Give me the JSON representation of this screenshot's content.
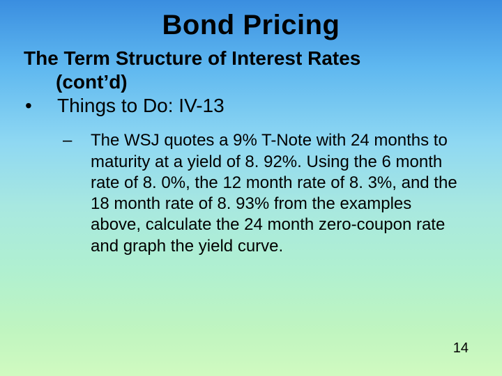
{
  "title": "Bond Pricing",
  "subtitle_line1": "The Term Structure of Interest Rates",
  "subtitle_line2": "(cont’d)",
  "bullet_symbol": "•",
  "level1_text": "Things to Do: IV-13",
  "dash_symbol": "–",
  "level2_text": "The WSJ quotes a 9% T-Note with 24 months to maturity at a yield of 8. 92%. Using the 6 month rate of 8. 0%, the 12 month rate of 8. 3%, and the 18 month rate of 8. 93% from the examples above, calculate the 24 month zero-coupon rate and graph the yield curve.",
  "page_number": "14",
  "colors": {
    "gradient_top": "#3a8ee0",
    "gradient_bottom": "#d0fac0",
    "text": "#000000"
  },
  "typography": {
    "title_fontsize": 40,
    "subtitle_fontsize": 28,
    "body_fontsize": 24,
    "pagenum_fontsize": 20,
    "font_family": "Arial"
  }
}
